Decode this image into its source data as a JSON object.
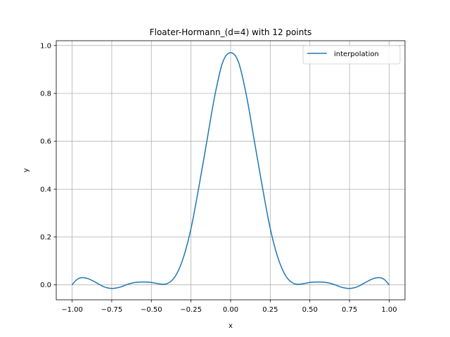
{
  "chart_data": {
    "type": "line",
    "title": "Floater-Hormann_(d=4) with 12 points",
    "xlabel": "x",
    "ylabel": "y",
    "xlim": [
      -1.1,
      1.1
    ],
    "ylim": [
      -0.0625,
      1.02
    ],
    "xticks": [
      -1.0,
      -0.75,
      -0.5,
      -0.25,
      0.0,
      0.25,
      0.5,
      0.75,
      1.0
    ],
    "xtick_labels": [
      "−1.00",
      "−0.75",
      "−0.50",
      "−0.25",
      "0.00",
      "0.25",
      "0.50",
      "0.75",
      "1.00"
    ],
    "yticks": [
      0.0,
      0.2,
      0.4,
      0.6,
      0.8,
      1.0
    ],
    "ytick_labels": [
      "0.0",
      "0.2",
      "0.4",
      "0.6",
      "0.8",
      "1.0"
    ],
    "grid": true,
    "legend_position": "upper right",
    "series": [
      {
        "name": "interpolation",
        "color": "#1f77b4",
        "x": [
          -1.0,
          -0.97,
          -0.94,
          -0.9,
          -0.85,
          -0.8,
          -0.75,
          -0.7,
          -0.65,
          -0.6,
          -0.55,
          -0.5,
          -0.45,
          -0.4,
          -0.35,
          -0.3,
          -0.25,
          -0.2,
          -0.15,
          -0.1,
          -0.05,
          0.0,
          0.05,
          0.1,
          0.15,
          0.2,
          0.25,
          0.3,
          0.35,
          0.4,
          0.45,
          0.5,
          0.55,
          0.6,
          0.65,
          0.7,
          0.75,
          0.8,
          0.85,
          0.9,
          0.94,
          0.97,
          1.0
        ],
        "y": [
          0.0,
          0.022,
          0.03,
          0.026,
          0.01,
          -0.008,
          -0.015,
          -0.01,
          0.002,
          0.01,
          0.012,
          0.01,
          0.004,
          0.005,
          0.035,
          0.11,
          0.235,
          0.41,
          0.6,
          0.79,
          0.93,
          0.97,
          0.93,
          0.79,
          0.6,
          0.41,
          0.235,
          0.11,
          0.035,
          0.005,
          0.004,
          0.01,
          0.012,
          0.01,
          0.002,
          -0.01,
          -0.015,
          -0.008,
          0.01,
          0.026,
          0.03,
          0.022,
          0.0
        ]
      }
    ]
  }
}
